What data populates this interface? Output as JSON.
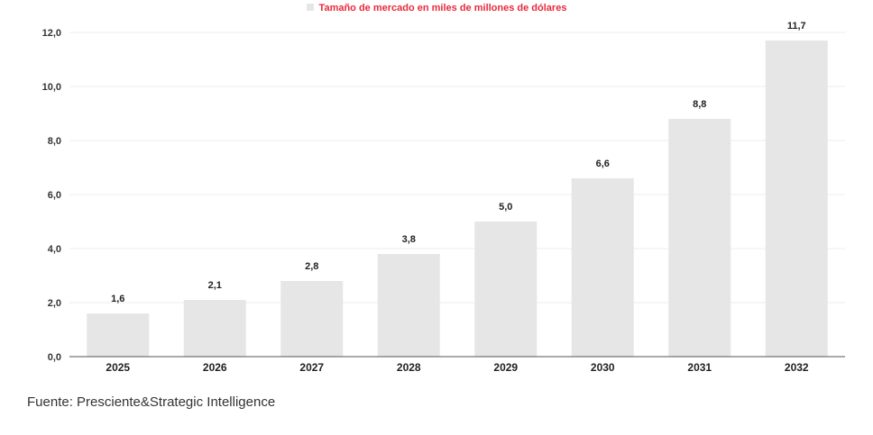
{
  "chart_data": {
    "type": "bar",
    "legend": "Tamaño de mercado en miles de millones de dólares",
    "categories": [
      "2025",
      "2026",
      "2027",
      "2028",
      "2029",
      "2030",
      "2031",
      "2032"
    ],
    "values": [
      1.6,
      2.1,
      2.8,
      3.8,
      5.0,
      6.6,
      8.8,
      11.7
    ],
    "value_labels": [
      "1,6",
      "2,1",
      "2,8",
      "3,8",
      "5,0",
      "6,6",
      "8,8",
      "11,7"
    ],
    "yticks": [
      0,
      2,
      4,
      6,
      8,
      10,
      12
    ],
    "ytick_labels": [
      "0,0",
      "2,0",
      "4,0",
      "6,0",
      "8,0",
      "10,0",
      "12,0"
    ],
    "ylim": [
      0,
      12
    ],
    "grid": true,
    "legend_position": "top-center",
    "colors": {
      "bar": "#e6e6e6",
      "legend_text": "#e8293b",
      "grid": "#ececec",
      "axis": "#555555"
    }
  },
  "source": "Fuente: Presciente&Strategic Intelligence"
}
